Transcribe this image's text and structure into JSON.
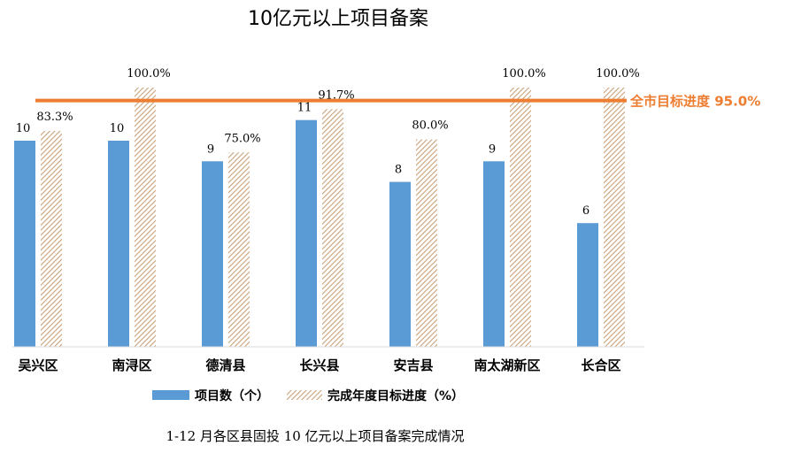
{
  "chart_data": {
    "type": "bar",
    "title": "10亿元以上项目备案",
    "categories": [
      "吴兴区",
      "南浔区",
      "德清县",
      "长兴县",
      "安吉县",
      "南太湖新区",
      "长合区"
    ],
    "series": [
      {
        "name": "项目数（个）",
        "values": [
          10,
          10,
          9,
          11,
          8,
          9,
          6
        ],
        "labels": [
          "10",
          "10",
          "9",
          "11",
          "8",
          "9",
          "6"
        ],
        "color": "#5B9BD5",
        "style": "solid"
      },
      {
        "name": "完成年度目标进度（%）",
        "values": [
          83.3,
          100.0,
          75.0,
          91.7,
          80.0,
          100.0,
          100.0
        ],
        "labels": [
          "83.3%",
          "100.0%",
          "75.0%",
          "91.7%",
          "80.0%",
          "100.0%",
          "100.0%"
        ],
        "color": "#C9A27A",
        "style": "hatched"
      }
    ],
    "target_line": {
      "value": 95.0,
      "label": "全市目标进度 95.0%",
      "color": "#ED7D31"
    },
    "legend_position": "bottom",
    "grid": false
  },
  "caption": "1-12 月各区县固投 10 亿元以上项目备案完成情况"
}
